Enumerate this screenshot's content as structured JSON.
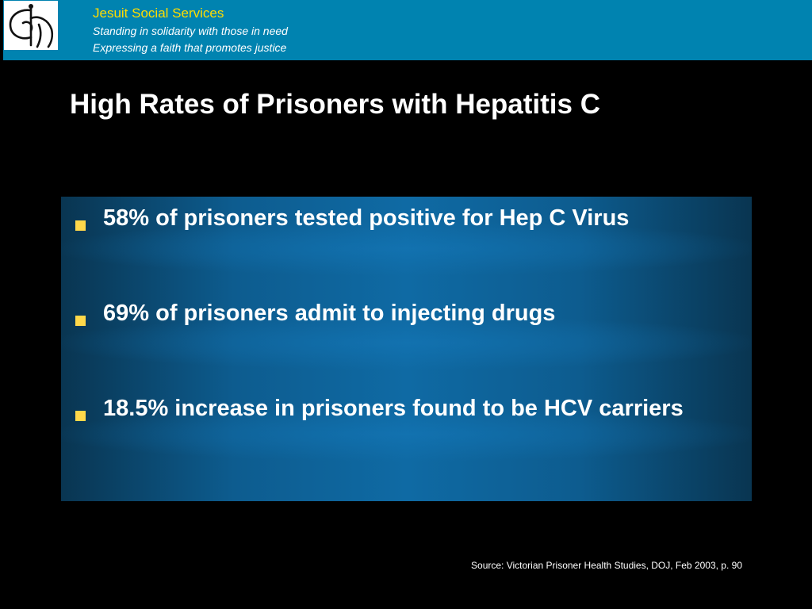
{
  "header": {
    "org_name": "Jesuit Social Services",
    "taglines": [
      "Standing in solidarity with those in need",
      "Expressing a faith that promotes justice"
    ],
    "logo_icon": "jesuit-social-services-logo-icon"
  },
  "slide": {
    "title": "High Rates of Prisoners with Hepatitis C",
    "bullets": [
      "58% of prisoners tested positive for Hep C Virus",
      "69% of prisoners admit to injecting drugs",
      "18.5% increase in prisoners found to be HCV carriers"
    ],
    "source": "Source: Victorian Prisoner Health Studies, DOJ, Feb 2003, p. 90"
  },
  "colors": {
    "header_bg": "#0083b0",
    "org_name": "#ffdd00",
    "bullet_marker": "#ffd84a",
    "content_box": "#0f6aa4",
    "page_bg": "#000000"
  }
}
